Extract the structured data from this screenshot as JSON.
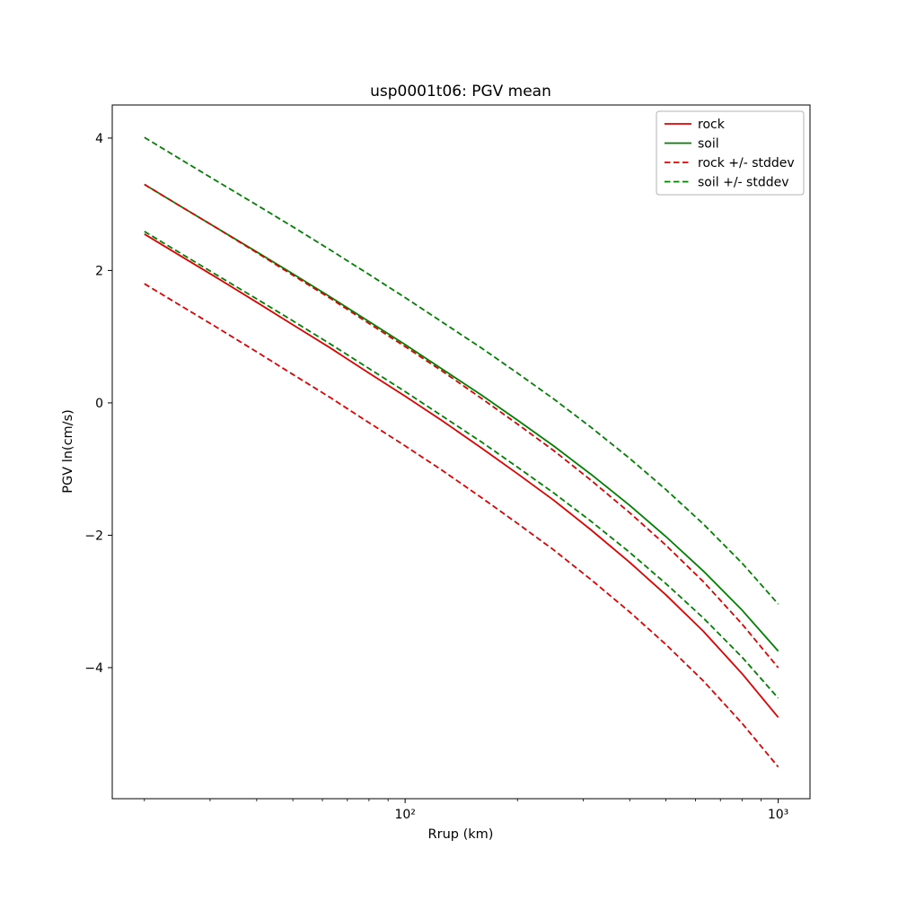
{
  "chart_data": {
    "type": "line",
    "title": "usp0001t06: PGV mean",
    "xlabel": "Rrup (km)",
    "ylabel": "PGV ln(cm/s)",
    "x_scale": "log",
    "y_scale": "linear",
    "grid": false,
    "xlim": [
      16.4,
      1217
    ],
    "ylim": [
      -5.98,
      4.5
    ],
    "xticks": [
      {
        "value": 100,
        "label": "10²"
      },
      {
        "value": 1000,
        "label": "10³"
      }
    ],
    "yticks": [
      {
        "value": -4,
        "label": "−4"
      },
      {
        "value": -2,
        "label": "−2"
      },
      {
        "value": 0,
        "label": "0"
      },
      {
        "value": 2,
        "label": "2"
      },
      {
        "value": 4,
        "label": "4"
      }
    ],
    "colors": {
      "rock": "#e00000",
      "soil": "#008000",
      "frame": "#000000",
      "legend_border": "#b3b3b3"
    },
    "x": [
      20,
      25,
      31.5,
      40,
      50,
      63,
      80,
      100,
      125,
      160,
      200,
      250,
      315,
      400,
      500,
      630,
      800,
      1000
    ],
    "series": [
      {
        "name": "rock",
        "color": "#e00000",
        "style": "solid",
        "values": [
          2.55,
          2.22,
          1.88,
          1.52,
          1.18,
          0.83,
          0.45,
          0.1,
          -0.26,
          -0.68,
          -1.07,
          -1.47,
          -1.92,
          -2.41,
          -2.9,
          -3.45,
          -4.09,
          -4.75
        ]
      },
      {
        "name": "soil",
        "color": "#008000",
        "style": "solid",
        "values": [
          3.3,
          2.97,
          2.63,
          2.28,
          1.95,
          1.6,
          1.23,
          0.88,
          0.52,
          0.12,
          -0.26,
          -0.65,
          -1.08,
          -1.55,
          -2.02,
          -2.54,
          -3.13,
          -3.75
        ]
      },
      {
        "name": "rock + stddev",
        "color": "#e00000",
        "style": "dashed",
        "values": [
          3.3,
          2.97,
          2.63,
          2.27,
          1.93,
          1.58,
          1.2,
          0.85,
          0.49,
          0.07,
          -0.32,
          -0.72,
          -1.17,
          -1.66,
          -2.15,
          -2.7,
          -3.34,
          -4.0
        ]
      },
      {
        "name": "rock - stddev",
        "color": "#e00000",
        "style": "dashed",
        "values": [
          1.8,
          1.47,
          1.13,
          0.77,
          0.43,
          0.08,
          -0.3,
          -0.65,
          -1.01,
          -1.43,
          -1.82,
          -2.22,
          -2.67,
          -3.16,
          -3.65,
          -4.2,
          -4.84,
          -5.5
        ]
      },
      {
        "name": "soil + stddev",
        "color": "#008000",
        "style": "dashed",
        "values": [
          4.01,
          3.68,
          3.34,
          2.99,
          2.66,
          2.31,
          1.94,
          1.59,
          1.23,
          0.83,
          0.45,
          0.06,
          -0.37,
          -0.84,
          -1.31,
          -1.83,
          -2.42,
          -3.04
        ]
      },
      {
        "name": "soil - stddev",
        "color": "#008000",
        "style": "dashed",
        "values": [
          2.59,
          2.26,
          1.92,
          1.57,
          1.24,
          0.89,
          0.52,
          0.17,
          -0.19,
          -0.59,
          -0.97,
          -1.36,
          -1.79,
          -2.26,
          -2.73,
          -3.25,
          -3.84,
          -4.46
        ]
      }
    ],
    "legend": {
      "position": "upper right",
      "entries": [
        {
          "label": "rock",
          "color": "#e00000",
          "style": "solid"
        },
        {
          "label": "soil",
          "color": "#008000",
          "style": "solid"
        },
        {
          "label": "rock +/- stddev",
          "color": "#e00000",
          "style": "dashed"
        },
        {
          "label": "soil +/- stddev",
          "color": "#008000",
          "style": "dashed"
        }
      ]
    }
  }
}
